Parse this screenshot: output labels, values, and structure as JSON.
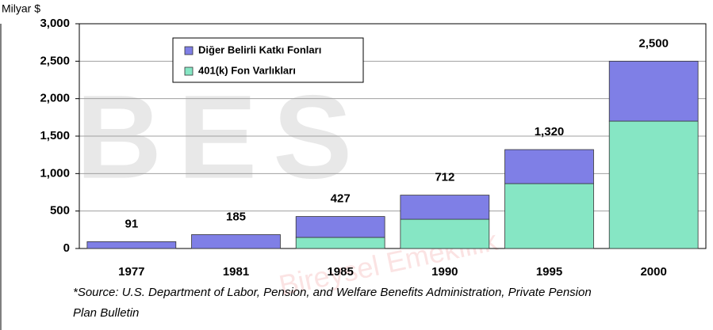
{
  "chart_data": {
    "type": "stacked_bar",
    "y_label": "Milyar $",
    "categories": [
      "1977",
      "1981",
      "1985",
      "1990",
      "1995",
      "2000"
    ],
    "series": [
      {
        "name": "401(k) Fon Varlıkları",
        "color": "#86e6c4",
        "values": [
          0,
          0,
          148,
          390,
          866,
          1700
        ]
      },
      {
        "name": "Diğer Belirli Katkı Fonları",
        "color": "#7f7fe6",
        "values": [
          91,
          185,
          279,
          322,
          454,
          800
        ]
      }
    ],
    "totals": [
      91,
      185,
      427,
      712,
      1320,
      2500
    ],
    "total_labels": [
      "91",
      "185",
      "427",
      "712",
      "1,320",
      "2,500"
    ],
    "ylim": [
      0,
      3000
    ],
    "yticks": [
      0,
      500,
      {
        "value": 1000,
        "label": "1,000"
      },
      {
        "value": 1500,
        "label": "1,500"
      },
      {
        "value": 2000,
        "label": "2,000"
      },
      {
        "value": 2500,
        "label": "2,500"
      },
      {
        "value": 3000,
        "label": "3,000"
      }
    ],
    "grid": true,
    "legend": "top-left",
    "watermark": "BES",
    "watermark_sub": "Bireysel Emeklilik",
    "source": "*Source: U.S. Department of Labor, Pension, and Welfare Benefits Administration, Private Pension",
    "source_2": "Plan Bulletin"
  }
}
